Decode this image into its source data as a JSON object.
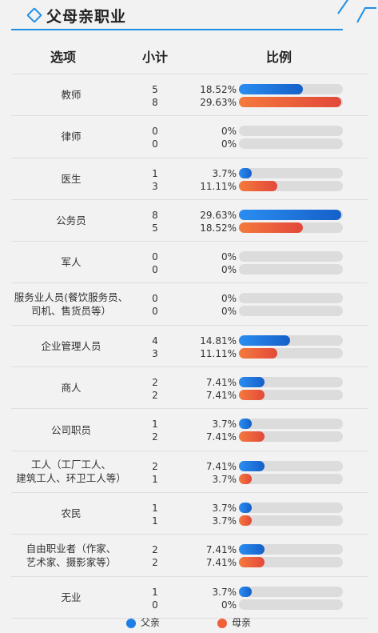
{
  "header": {
    "title": "父母亲职业"
  },
  "table": {
    "col_option": "选项",
    "col_count": "小计",
    "col_ratio": "比例"
  },
  "legend": [
    {
      "label": "父亲",
      "color": "#1f7fe6"
    },
    {
      "label": "母亲",
      "color": "#ef5f38"
    }
  ],
  "chart_data": {
    "type": "bar",
    "title": "父母亲职业",
    "x_unit": "percent",
    "xlim": [
      0,
      30
    ],
    "categories": [
      "教师",
      "律师",
      "医生",
      "公务员",
      "军人",
      "服务业人员(餐饮服务员、\n司机、售货员等）",
      "企业管理人员",
      "商人",
      "公司职员",
      "工人（工厂工人、\n建筑工人、环卫工人等）",
      "农民",
      "自由职业者（作家、\n艺术家、摄影家等）",
      "无业"
    ],
    "series": [
      {
        "name": "父亲",
        "color": "#1f7fe6",
        "counts": [
          "5",
          "0",
          "1",
          "8",
          "0",
          "0",
          "4",
          "2",
          "1",
          "2",
          "1",
          "2",
          "1"
        ],
        "percent_labels": [
          "18.52%",
          "0%",
          "3.7%",
          "29.63%",
          "0%",
          "0%",
          "14.81%",
          "7.41%",
          "3.7%",
          "7.41%",
          "3.7%",
          "7.41%",
          "3.7%"
        ],
        "values": [
          18.52,
          0,
          3.7,
          29.63,
          0,
          0,
          14.81,
          7.41,
          3.7,
          7.41,
          3.7,
          7.41,
          3.7
        ]
      },
      {
        "name": "母亲",
        "color": "#ef5f38",
        "counts": [
          "8",
          "0",
          "3",
          "5",
          "0",
          "0",
          "3",
          "2",
          "2",
          "1",
          "1",
          "2",
          "0"
        ],
        "percent_labels": [
          "29.63%",
          "0%",
          "11.11%",
          "18.52%",
          "0%",
          "0%",
          "11.11%",
          "7.41%",
          "7.41%",
          "3.7%",
          "3.7%",
          "7.41%",
          "0%"
        ],
        "values": [
          29.63,
          0,
          11.11,
          18.52,
          0,
          0,
          11.11,
          7.41,
          7.41,
          3.7,
          3.7,
          7.41,
          0
        ]
      }
    ]
  }
}
